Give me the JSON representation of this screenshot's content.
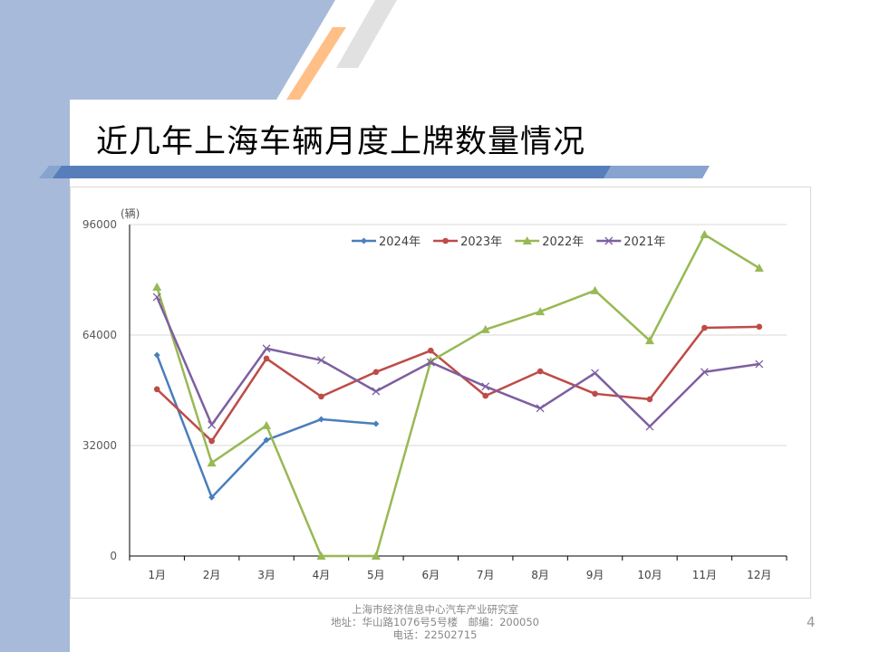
{
  "slide": {
    "title": "近几年上海车辆月度上牌数量情况",
    "page_number": "4",
    "footer": {
      "line1": "上海市经济信息中心汽车产业研究室",
      "line2": "地址：华山路1076号5号楼　邮编：200050",
      "line3": "电话：22502715"
    }
  },
  "colors": {
    "background_blue": "#a7bad9",
    "bar_blue": "#567ebb",
    "orange": "#ffbf87",
    "gray": "#e1e1e1"
  },
  "chart_data": {
    "type": "line",
    "title": "",
    "ylabel": "(辆)",
    "xlabel": "",
    "ylim": [
      0,
      96000
    ],
    "yticks": [
      0,
      32000,
      64000,
      96000
    ],
    "ytick_labels": [
      "0",
      "32000",
      "64000",
      "96000"
    ],
    "grid": true,
    "legend_position": "top",
    "categories": [
      "1月",
      "2月",
      "3月",
      "4月",
      "5月",
      "6月",
      "7月",
      "8月",
      "9月",
      "10月",
      "11月",
      "12月"
    ],
    "series": [
      {
        "name": "2024年",
        "color": "#4a7ebb",
        "marker": "diamond",
        "values": [
          58200,
          17000,
          33600,
          39600,
          38300,
          null,
          null,
          null,
          null,
          null,
          null,
          null
        ]
      },
      {
        "name": "2023年",
        "color": "#be4b48",
        "marker": "circle",
        "values": [
          48300,
          33300,
          57200,
          46200,
          53300,
          59500,
          46400,
          53500,
          47000,
          45400,
          66100,
          66400
        ]
      },
      {
        "name": "2022年",
        "color": "#98b954",
        "marker": "triangle",
        "values": [
          77900,
          27000,
          37800,
          0,
          0,
          56400,
          65600,
          70800,
          76900,
          62400,
          93100,
          83400
        ]
      },
      {
        "name": "2021年",
        "color": "#7d5fa0",
        "marker": "x",
        "values": [
          75000,
          38000,
          60100,
          56700,
          47700,
          56100,
          49100,
          42800,
          53000,
          37500,
          53300,
          55600
        ]
      }
    ]
  }
}
